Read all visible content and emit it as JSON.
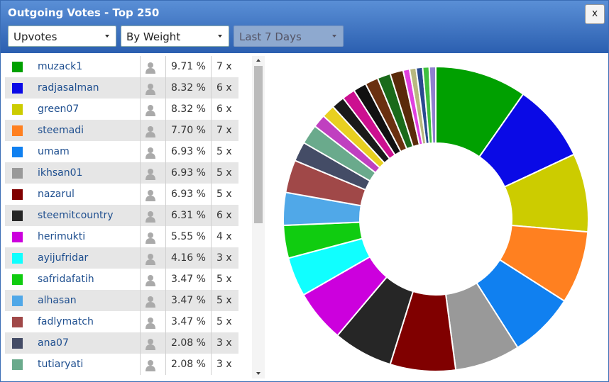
{
  "header": {
    "title": "Outgoing Votes - Top 250",
    "close": "x"
  },
  "controls": [
    "Upvotes",
    "By Weight",
    "Last 7 Days"
  ],
  "table": {
    "rows": [
      {
        "name": "muzack1",
        "color": "#00a000",
        "percent": 9.71,
        "percent_label": "9.71 %",
        "count_label": "7 x"
      },
      {
        "name": "radjasalman",
        "color": "#0a0ae6",
        "percent": 8.32,
        "percent_label": "8.32 %",
        "count_label": "6 x"
      },
      {
        "name": "green07",
        "color": "#cccc00",
        "percent": 8.32,
        "percent_label": "8.32 %",
        "count_label": "6 x"
      },
      {
        "name": "steemadi",
        "color": "#ff8020",
        "percent": 7.7,
        "percent_label": "7.70 %",
        "count_label": "7 x"
      },
      {
        "name": "umam",
        "color": "#1080f0",
        "percent": 6.93,
        "percent_label": "6.93 %",
        "count_label": "5 x"
      },
      {
        "name": "ikhsan01",
        "color": "#999999",
        "percent": 6.93,
        "percent_label": "6.93 %",
        "count_label": "5 x"
      },
      {
        "name": "nazarul",
        "color": "#800000",
        "percent": 6.93,
        "percent_label": "6.93 %",
        "count_label": "5 x"
      },
      {
        "name": "steemitcountry",
        "color": "#262626",
        "percent": 6.31,
        "percent_label": "6.31 %",
        "count_label": "6 x"
      },
      {
        "name": "herimukti",
        "color": "#cc00dd",
        "percent": 5.55,
        "percent_label": "5.55 %",
        "count_label": "4 x"
      },
      {
        "name": "ayijufridar",
        "color": "#10ffff",
        "percent": 4.16,
        "percent_label": "4.16 %",
        "count_label": "3 x"
      },
      {
        "name": "safridafatih",
        "color": "#10cc10",
        "percent": 3.47,
        "percent_label": "3.47 %",
        "count_label": "5 x"
      },
      {
        "name": "alhasan",
        "color": "#50a8e8",
        "percent": 3.47,
        "percent_label": "3.47 %",
        "count_label": "5 x"
      },
      {
        "name": "fadlymatch",
        "color": "#a04848",
        "percent": 3.47,
        "percent_label": "3.47 %",
        "count_label": "5 x"
      },
      {
        "name": "ana07",
        "color": "#444c66",
        "percent": 2.08,
        "percent_label": "2.08 %",
        "count_label": "3 x"
      },
      {
        "name": "tutiaryati",
        "color": "#6aaa8c",
        "percent": 2.08,
        "percent_label": "2.08 %",
        "count_label": "3 x"
      }
    ]
  },
  "donut": {
    "other_slices": [
      {
        "color": "#c040c0",
        "value": 1.39
      },
      {
        "color": "#e8d020",
        "value": 1.39
      },
      {
        "color": "#1a1a1a",
        "value": 1.39
      },
      {
        "color": "#cc1090",
        "value": 1.39
      },
      {
        "color": "#111111",
        "value": 1.39
      },
      {
        "color": "#6a3010",
        "value": 1.39
      },
      {
        "color": "#1a6a1a",
        "value": 1.39
      },
      {
        "color": "#5a2a0a",
        "value": 1.39
      },
      {
        "color": "#e040e0",
        "value": 0.69
      },
      {
        "color": "#b8b880",
        "value": 0.69
      },
      {
        "color": "#2a4a90",
        "value": 0.69
      },
      {
        "color": "#40c040",
        "value": 0.69
      },
      {
        "color": "#9080d0",
        "value": 0.69
      }
    ]
  }
}
